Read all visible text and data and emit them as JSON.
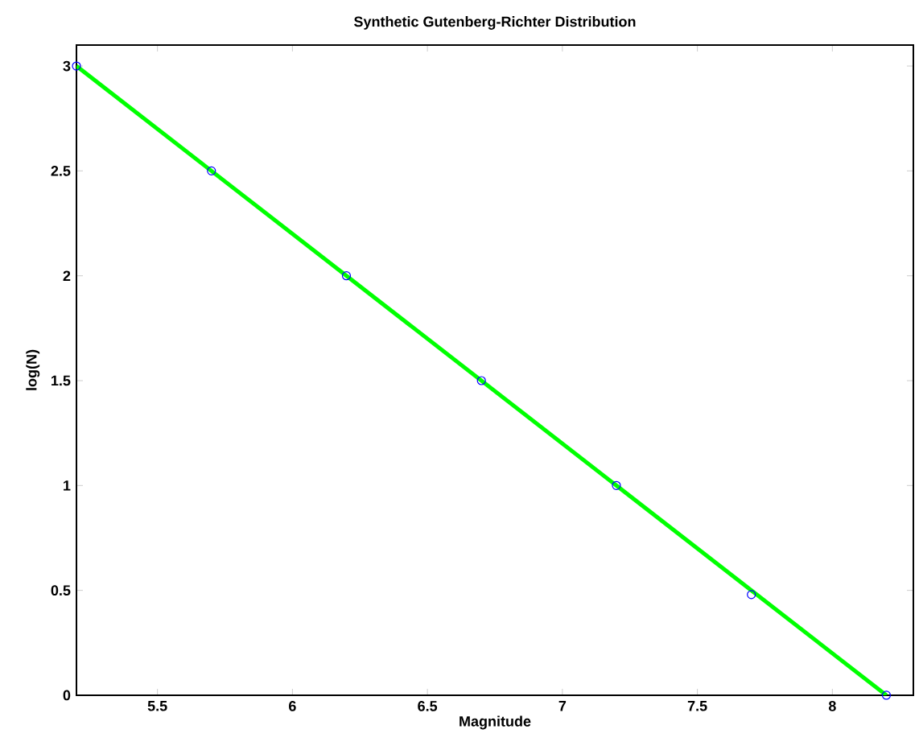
{
  "chart_data": {
    "type": "scatter",
    "title": "Synthetic Gutenberg-Richter Distribution",
    "xlabel": "Magnitude",
    "ylabel": "log(N)",
    "series": [
      {
        "color": "#0000ff",
        "marker": "circle",
        "x": [
          5.2,
          5.7,
          6.2,
          6.7,
          7.2,
          7.7,
          8.2
        ],
        "values": [
          3,
          2.5,
          2,
          1.5,
          1,
          0.48,
          0
        ]
      },
      {
        "type": "line",
        "color": "#00ff00",
        "marker": "none",
        "x": [
          5.2,
          8.2
        ],
        "values": [
          3,
          0
        ]
      }
    ],
    "xlim": [
      5.2,
      8.3
    ],
    "ylim": [
      0,
      3.1
    ],
    "xticks": [
      5.5,
      6,
      6.5,
      7,
      7.5,
      8
    ],
    "yticks": [
      0,
      0.5,
      1,
      1.5,
      2,
      2.5,
      3
    ],
    "grid": false
  }
}
